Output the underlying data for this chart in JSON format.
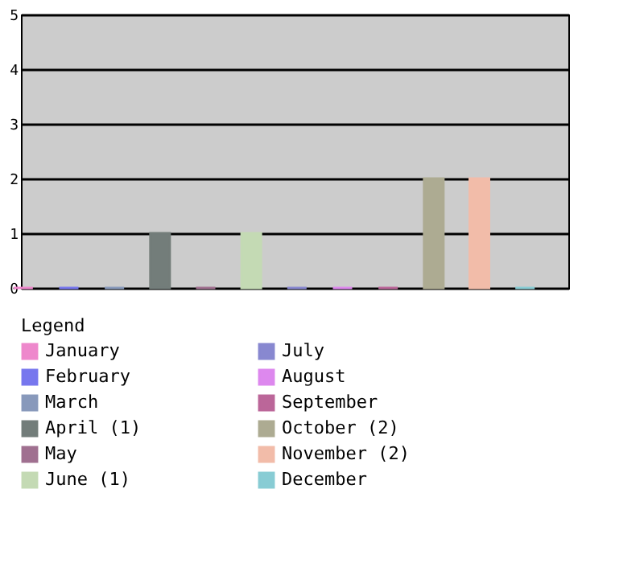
{
  "chart_data": {
    "type": "bar",
    "categories": [
      null,
      null,
      null,
      null,
      null,
      null,
      null,
      null,
      null,
      null,
      null,
      null
    ],
    "series": [
      {
        "name": "January",
        "color": "#ee88cc",
        "values": [
          0,
          null,
          null,
          null,
          null,
          null,
          null,
          null,
          null,
          null,
          null,
          null
        ]
      },
      {
        "name": "February",
        "color": "#7777ee",
        "values": [
          null,
          0,
          null,
          null,
          null,
          null,
          null,
          null,
          null,
          null,
          null,
          null
        ]
      },
      {
        "name": "March",
        "color": "#8899bb",
        "values": [
          null,
          null,
          0,
          null,
          null,
          null,
          null,
          null,
          null,
          null,
          null,
          null
        ]
      },
      {
        "name": "April (1)",
        "color": "#737d7a",
        "values": [
          null,
          null,
          null,
          1,
          null,
          null,
          null,
          null,
          null,
          null,
          null,
          null
        ]
      },
      {
        "name": "May",
        "color": "#a07090",
        "values": [
          null,
          null,
          null,
          null,
          0,
          null,
          null,
          null,
          null,
          null,
          null,
          null
        ]
      },
      {
        "name": "June (1)",
        "color": "#c4dab4",
        "values": [
          null,
          null,
          null,
          null,
          null,
          1,
          null,
          null,
          null,
          null,
          null,
          null
        ]
      },
      {
        "name": "July",
        "color": "#8888d0",
        "values": [
          null,
          null,
          null,
          null,
          null,
          null,
          0,
          null,
          null,
          null,
          null,
          null
        ]
      },
      {
        "name": "August",
        "color": "#dd88ee",
        "values": [
          null,
          null,
          null,
          null,
          null,
          null,
          null,
          0,
          null,
          null,
          null,
          null
        ]
      },
      {
        "name": "September",
        "color": "#bb6699",
        "values": [
          null,
          null,
          null,
          null,
          null,
          null,
          null,
          null,
          0,
          null,
          null,
          null
        ]
      },
      {
        "name": "October (2)",
        "color": "#adab92",
        "values": [
          null,
          null,
          null,
          null,
          null,
          null,
          null,
          null,
          null,
          2,
          null,
          null
        ]
      },
      {
        "name": "November (2)",
        "color": "#f2bca9",
        "values": [
          null,
          null,
          null,
          null,
          null,
          null,
          null,
          null,
          null,
          null,
          2,
          null
        ]
      },
      {
        "name": "December",
        "color": "#88ccd4",
        "values": [
          null,
          null,
          null,
          null,
          null,
          null,
          null,
          null,
          null,
          null,
          null,
          0
        ]
      }
    ],
    "ylim": [
      0,
      5
    ],
    "yticks": [
      0,
      1,
      2,
      3,
      4,
      5
    ],
    "grid": "y",
    "legend": "bottom left",
    "legend_title": "Legend",
    "tick_labels": "y"
  }
}
